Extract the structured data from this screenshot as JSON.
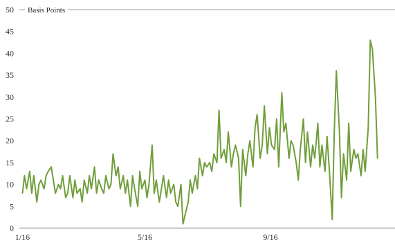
{
  "chart_data": {
    "type": "line",
    "title": "",
    "xlabel": "",
    "ylabel": "Basis Points",
    "ylim": [
      0,
      50
    ],
    "yticks": [
      0,
      5,
      10,
      15,
      20,
      25,
      30,
      35,
      40,
      45,
      50
    ],
    "xlim": [
      "2016-01-01",
      "2016-12-31"
    ],
    "xticks": [
      {
        "date": "2016-01-04",
        "label": "1/16"
      },
      {
        "date": "2016-05-02",
        "label": "5/16"
      },
      {
        "date": "2016-09-01",
        "label": "9/16"
      }
    ],
    "grid": false,
    "line_color": "#6f9e3a",
    "series": [
      {
        "values": [
          [
            "2016-01-04",
            8
          ],
          [
            "2016-01-06",
            12
          ],
          [
            "2016-01-08",
            9
          ],
          [
            "2016-01-11",
            13
          ],
          [
            "2016-01-13",
            8
          ],
          [
            "2016-01-15",
            12
          ],
          [
            "2016-01-18",
            6
          ],
          [
            "2016-01-20",
            10
          ],
          [
            "2016-01-22",
            11
          ],
          [
            "2016-01-25",
            9
          ],
          [
            "2016-01-27",
            12
          ],
          [
            "2016-01-29",
            13
          ],
          [
            "2016-02-01",
            14
          ],
          [
            "2016-02-03",
            11
          ],
          [
            "2016-02-05",
            8
          ],
          [
            "2016-02-08",
            10
          ],
          [
            "2016-02-10",
            9
          ],
          [
            "2016-02-12",
            12
          ],
          [
            "2016-02-15",
            7
          ],
          [
            "2016-02-17",
            8
          ],
          [
            "2016-02-19",
            12
          ],
          [
            "2016-02-22",
            7
          ],
          [
            "2016-02-24",
            11
          ],
          [
            "2016-02-26",
            8
          ],
          [
            "2016-02-29",
            9
          ],
          [
            "2016-03-02",
            6
          ],
          [
            "2016-03-04",
            11
          ],
          [
            "2016-03-07",
            8
          ],
          [
            "2016-03-09",
            12
          ],
          [
            "2016-03-11",
            9
          ],
          [
            "2016-03-14",
            14
          ],
          [
            "2016-03-16",
            8
          ],
          [
            "2016-03-18",
            11
          ],
          [
            "2016-03-21",
            9
          ],
          [
            "2016-03-23",
            8
          ],
          [
            "2016-03-25",
            12
          ],
          [
            "2016-03-28",
            9
          ],
          [
            "2016-03-30",
            10
          ],
          [
            "2016-04-01",
            17
          ],
          [
            "2016-04-04",
            12
          ],
          [
            "2016-04-06",
            14
          ],
          [
            "2016-04-08",
            9
          ],
          [
            "2016-04-11",
            12
          ],
          [
            "2016-04-13",
            8
          ],
          [
            "2016-04-15",
            11
          ],
          [
            "2016-04-18",
            5
          ],
          [
            "2016-04-20",
            12
          ],
          [
            "2016-04-22",
            9
          ],
          [
            "2016-04-25",
            5
          ],
          [
            "2016-04-27",
            13
          ],
          [
            "2016-04-29",
            9
          ],
          [
            "2016-05-02",
            11
          ],
          [
            "2016-05-04",
            7
          ],
          [
            "2016-05-06",
            10
          ],
          [
            "2016-05-09",
            19
          ],
          [
            "2016-05-11",
            8
          ],
          [
            "2016-05-13",
            11
          ],
          [
            "2016-05-16",
            6
          ],
          [
            "2016-05-18",
            9
          ],
          [
            "2016-05-20",
            12
          ],
          [
            "2016-05-23",
            7
          ],
          [
            "2016-05-25",
            11
          ],
          [
            "2016-05-27",
            8
          ],
          [
            "2016-05-30",
            10
          ],
          [
            "2016-06-01",
            6
          ],
          [
            "2016-06-03",
            5
          ],
          [
            "2016-06-06",
            10
          ],
          [
            "2016-06-08",
            1
          ],
          [
            "2016-06-10",
            3
          ],
          [
            "2016-06-13",
            6
          ],
          [
            "2016-06-15",
            11
          ],
          [
            "2016-06-17",
            8
          ],
          [
            "2016-06-20",
            12
          ],
          [
            "2016-06-22",
            9
          ],
          [
            "2016-06-24",
            16
          ],
          [
            "2016-06-27",
            12
          ],
          [
            "2016-06-29",
            15
          ],
          [
            "2016-07-01",
            14
          ],
          [
            "2016-07-04",
            15
          ],
          [
            "2016-07-06",
            13
          ],
          [
            "2016-07-08",
            17
          ],
          [
            "2016-07-11",
            15
          ],
          [
            "2016-07-13",
            27
          ],
          [
            "2016-07-15",
            16
          ],
          [
            "2016-07-18",
            18
          ],
          [
            "2016-07-20",
            15
          ],
          [
            "2016-07-22",
            22
          ],
          [
            "2016-07-25",
            14
          ],
          [
            "2016-07-27",
            17
          ],
          [
            "2016-07-29",
            19
          ],
          [
            "2016-08-01",
            16
          ],
          [
            "2016-08-03",
            5
          ],
          [
            "2016-08-05",
            18
          ],
          [
            "2016-08-08",
            12
          ],
          [
            "2016-08-10",
            17
          ],
          [
            "2016-08-12",
            20
          ],
          [
            "2016-08-15",
            14
          ],
          [
            "2016-08-17",
            23
          ],
          [
            "2016-08-19",
            26
          ],
          [
            "2016-08-22",
            16
          ],
          [
            "2016-08-24",
            19
          ],
          [
            "2016-08-26",
            28
          ],
          [
            "2016-08-29",
            17
          ],
          [
            "2016-08-31",
            23
          ],
          [
            "2016-09-02",
            19
          ],
          [
            "2016-09-05",
            18
          ],
          [
            "2016-09-07",
            25
          ],
          [
            "2016-09-09",
            14
          ],
          [
            "2016-09-12",
            31
          ],
          [
            "2016-09-14",
            22
          ],
          [
            "2016-09-16",
            24
          ],
          [
            "2016-09-19",
            16
          ],
          [
            "2016-09-21",
            20
          ],
          [
            "2016-09-23",
            19
          ],
          [
            "2016-09-26",
            15
          ],
          [
            "2016-09-28",
            11
          ],
          [
            "2016-09-30",
            18
          ],
          [
            "2016-10-03",
            25
          ],
          [
            "2016-10-05",
            15
          ],
          [
            "2016-10-07",
            22
          ],
          [
            "2016-10-10",
            14
          ],
          [
            "2016-10-12",
            19
          ],
          [
            "2016-10-14",
            16
          ],
          [
            "2016-10-17",
            24
          ],
          [
            "2016-10-19",
            14
          ],
          [
            "2016-10-21",
            19
          ],
          [
            "2016-10-24",
            13
          ],
          [
            "2016-10-26",
            21
          ],
          [
            "2016-10-28",
            14
          ],
          [
            "2016-10-31",
            2
          ],
          [
            "2016-11-02",
            22
          ],
          [
            "2016-11-04",
            36
          ],
          [
            "2016-11-07",
            22
          ],
          [
            "2016-11-09",
            7
          ],
          [
            "2016-11-11",
            17
          ],
          [
            "2016-11-14",
            11
          ],
          [
            "2016-11-16",
            24
          ],
          [
            "2016-11-18",
            13
          ],
          [
            "2016-11-21",
            18
          ],
          [
            "2016-11-23",
            16
          ],
          [
            "2016-11-25",
            17
          ],
          [
            "2016-11-28",
            12
          ],
          [
            "2016-11-30",
            18
          ],
          [
            "2016-12-02",
            13
          ],
          [
            "2016-12-05",
            23
          ],
          [
            "2016-12-07",
            43
          ],
          [
            "2016-12-09",
            41
          ],
          [
            "2016-12-12",
            30
          ],
          [
            "2016-12-14",
            16
          ]
        ]
      }
    ]
  }
}
